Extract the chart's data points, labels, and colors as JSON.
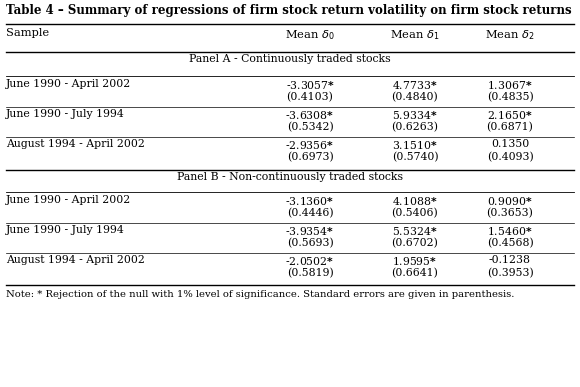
{
  "title": "Table 4 – Summary of regressions of firm stock return volatility on firm stock returns",
  "panel_a_label": "Panel A - Continuously traded stocks",
  "panel_b_label": "Panel B - Non-continuously traded stocks",
  "panel_a_rows": [
    [
      "June 1990 - April 2002",
      "-3.3057*",
      "4.7733*",
      "1.3067*",
      "(0.4103)",
      "(0.4840)",
      "(0.4835)"
    ],
    [
      "June 1990 - July 1994",
      "-3.6308*",
      "5.9334*",
      "2.1650*",
      "(0.5342)",
      "(0.6263)",
      "(0.6871)"
    ],
    [
      "August 1994 - April 2002",
      "-2.9356*",
      "3.1510*",
      "0.1350",
      "(0.6973)",
      "(0.5740)",
      "(0.4093)"
    ]
  ],
  "panel_b_rows": [
    [
      "June 1990 - April 2002",
      "-3.1360*",
      "4.1088*",
      "0.9090*",
      "(0.4446)",
      "(0.5406)",
      "(0.3653)"
    ],
    [
      "June 1990 - July 1994",
      "-3.9354*",
      "5.5324*",
      "1.5460*",
      "(0.5693)",
      "(0.6702)",
      "(0.4568)"
    ],
    [
      "August 1994 - April 2002",
      "-2.0502*",
      "1.9595*",
      "-0.1238",
      "(0.5819)",
      "(0.6641)",
      "(0.3953)"
    ]
  ],
  "note": "Note: * Rejection of the null with 1% level of significance. Standard errors are given in parenthesis.",
  "bg_color": "#ffffff",
  "text_color": "#000000"
}
